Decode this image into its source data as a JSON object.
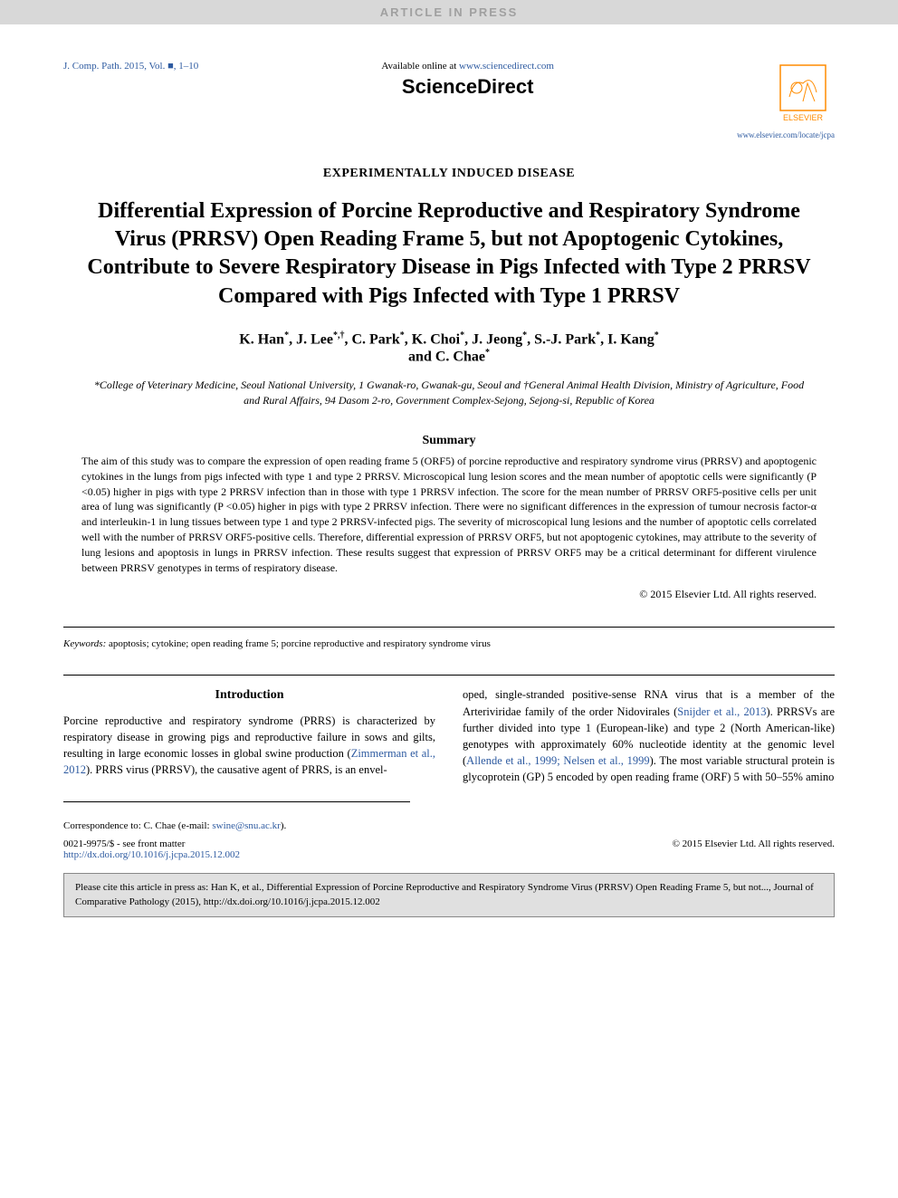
{
  "topBar": "ARTICLE IN PRESS",
  "journalRef": "J. Comp. Path. 2015, Vol. ■, 1–10",
  "availableText": "Available online at ",
  "sdUrl": "www.sciencedirect.com",
  "sdBrand": "ScienceDirect",
  "elsevierName": "ELSEVIER",
  "elsevierUrl": "www.elsevier.com/locate/jcpa",
  "sectionName": "EXPERIMENTALLY INDUCED DISEASE",
  "title": "Differential Expression of Porcine Reproductive and Respiratory Syndrome Virus (PRRSV) Open Reading Frame 5, but not Apoptogenic Cytokines, Contribute to Severe Respiratory Disease in Pigs Infected with Type 2 PRRSV Compared with Pigs Infected with Type 1 PRRSV",
  "authors": {
    "list": [
      {
        "name": "K. Han",
        "aff": "*"
      },
      {
        "name": "J. Lee",
        "aff": "*,†"
      },
      {
        "name": "C. Park",
        "aff": "*"
      },
      {
        "name": "K. Choi",
        "aff": "*"
      },
      {
        "name": "J. Jeong",
        "aff": "*"
      },
      {
        "name": "S.-J. Park",
        "aff": "*"
      },
      {
        "name": "I. Kang",
        "aff": "*"
      },
      {
        "name": "C. Chae",
        "aff": "*"
      }
    ]
  },
  "affiliations": "*College of Veterinary Medicine, Seoul National University, 1 Gwanak-ro, Gwanak-gu, Seoul and †General Animal Health Division, Ministry of Agriculture, Food and Rural Affairs, 94 Dasom 2-ro, Government Complex-Sejong, Sejong-si, Republic of Korea",
  "summaryHead": "Summary",
  "summaryText": "The aim of this study was to compare the expression of open reading frame 5 (ORF5) of porcine reproductive and respiratory syndrome virus (PRRSV) and apoptogenic cytokines in the lungs from pigs infected with type 1 and type 2 PRRSV. Microscopical lung lesion scores and the mean number of apoptotic cells were significantly (P <0.05) higher in pigs with type 2 PRRSV infection than in those with type 1 PRRSV infection. The score for the mean number of PRRSV ORF5-positive cells per unit area of lung was significantly (P <0.05) higher in pigs with type 2 PRRSV infection. There were no significant differences in the expression of tumour necrosis factor-α and interleukin-1 in lung tissues between type 1 and type 2 PRRSV-infected pigs. The severity of microscopical lung lesions and the number of apoptotic cells correlated well with the number of PRRSV ORF5-positive cells. Therefore, differential expression of PRRSV ORF5, but not apoptogenic cytokines, may attribute to the severity of lung lesions and apoptosis in lungs in PRRSV infection. These results suggest that expression of PRRSV ORF5 may be a critical determinant for different virulence between PRRSV genotypes in terms of respiratory disease.",
  "copyright": "© 2015 Elsevier Ltd. All rights reserved.",
  "keywordsLabel": "Keywords:",
  "keywords": "apoptosis; cytokine; open reading frame 5; porcine reproductive and respiratory syndrome virus",
  "introHead": "Introduction",
  "introLeft1": "Porcine reproductive and respiratory syndrome (PRRS) is characterized by respiratory disease in growing pigs and reproductive failure in sows and gilts, resulting in large economic losses in global swine production (",
  "introLeft1Ref": "Zimmerman et al., 2012",
  "introLeft1b": "). PRRS virus (PRRSV), the causative agent of PRRS, is an envel-",
  "introRight1": "oped, single-stranded positive-sense RNA virus that is a member of the Arteriviridae family of the order Nidovirales (",
  "introRight1Ref": "Snijder et al., 2013",
  "introRight1b": "). PRRSVs are further divided into type 1 (European-like) and type 2 (North American-like) genotypes with approximately 60% nucleotide identity at the genomic level (",
  "introRight1Ref2": "Allende et al., 1999; Nelsen et al., 1999",
  "introRight1c": "). The most variable structural protein is glycoprotein (GP) 5 encoded by open reading frame (ORF) 5 with 50–55% amino",
  "correspondence": "Correspondence to: C. Chae (e-mail: ",
  "corrEmail": "swine@snu.ac.kr",
  "corrEnd": ").",
  "issn": "0021-9975/$ - see front matter",
  "doi": "http://dx.doi.org/10.1016/j.jcpa.2015.12.002",
  "footerCopyright": "© 2015 Elsevier Ltd. All rights reserved.",
  "citeBox": "Please cite this article in press as: Han K, et al., Differential Expression of Porcine Reproductive and Respiratory Syndrome Virus (PRRSV) Open Reading Frame 5, but not..., Journal of Comparative Pathology (2015), http://dx.doi.org/10.1016/j.jcpa.2015.12.002",
  "colors": {
    "link": "#2d5aa0",
    "topBarBg": "#d8d8d8",
    "topBarText": "#a0a0a0",
    "citeBoxBg": "#e0e0e0",
    "elsevierOrange": "#ff8c00"
  }
}
